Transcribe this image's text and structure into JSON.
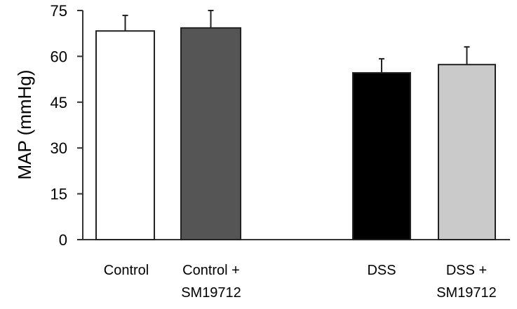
{
  "chart_data": {
    "type": "bar",
    "title": "",
    "xlabel": "",
    "ylabel": "MAP (mmHg)",
    "ylim": [
      0,
      75
    ],
    "yticks": [
      0,
      15,
      30,
      45,
      60,
      75
    ],
    "grid": false,
    "legend": null,
    "categories": [
      "Control",
      "Control + SM19712",
      "DSS",
      "DSS + SM19712"
    ],
    "category_label_lines": [
      [
        "Control"
      ],
      [
        "Control +",
        "SM19712"
      ],
      [
        "DSS"
      ],
      [
        "DSS +",
        "SM19712"
      ]
    ],
    "values": [
      68.3,
      69.3,
      54.6,
      57.3
    ],
    "error_bars": [
      5.1,
      5.7,
      4.6,
      5.8
    ],
    "bar_colors": [
      "#ffffff",
      "#555555",
      "#000000",
      "#cacaca"
    ]
  }
}
